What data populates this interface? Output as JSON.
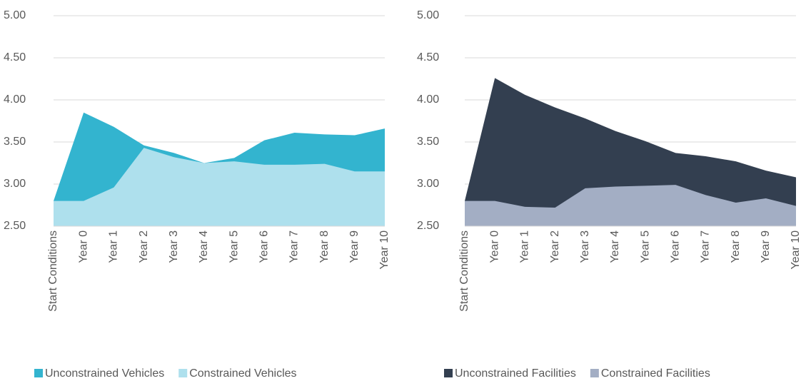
{
  "chart_data": [
    {
      "type": "area",
      "categories": [
        "Start Conditions",
        "Year 0",
        "Year 1",
        "Year 2",
        "Year 3",
        "Year 4",
        "Year 5",
        "Year 6",
        "Year 7",
        "Year 8",
        "Year 9",
        "Year 10"
      ],
      "series": [
        {
          "name": "Unconstrained Vehicles",
          "color": "#33b4cf",
          "values": [
            2.8,
            3.85,
            3.68,
            3.46,
            3.37,
            3.25,
            3.31,
            3.52,
            3.61,
            3.59,
            3.58,
            3.66
          ]
        },
        {
          "name": "Constrained Vehicles",
          "color": "#aee0ed",
          "values": [
            2.8,
            2.8,
            2.96,
            3.43,
            3.32,
            3.25,
            3.27,
            3.23,
            3.23,
            3.24,
            3.15,
            3.15
          ]
        }
      ],
      "ylim": [
        2.5,
        5
      ],
      "yticks": [
        {
          "value": 2.5,
          "label": "2.50"
        },
        {
          "value": 3,
          "label": "3.00"
        },
        {
          "value": 3.5,
          "label": "3.50"
        },
        {
          "value": 4,
          "label": "4.00"
        },
        {
          "value": 4.5,
          "label": "4.50"
        },
        {
          "value": 5,
          "label": "5.00"
        }
      ],
      "grid": true
    },
    {
      "type": "area",
      "categories": [
        "Start Conditions",
        "Year 0",
        "Year 1",
        "Year 2",
        "Year 3",
        "Year 4",
        "Year 5",
        "Year 6",
        "Year 7",
        "Year 8",
        "Year 9",
        "Year 10"
      ],
      "series": [
        {
          "name": "Unconstrained Facilities",
          "color": "#333f50",
          "values": [
            2.8,
            4.26,
            4.06,
            3.91,
            3.78,
            3.63,
            3.51,
            3.37,
            3.33,
            3.27,
            3.16,
            3.08
          ]
        },
        {
          "name": "Constrained Facilities",
          "color": "#a3aec4",
          "values": [
            2.8,
            2.8,
            2.73,
            2.72,
            2.95,
            2.97,
            2.98,
            2.99,
            2.87,
            2.78,
            2.83,
            2.74
          ]
        }
      ],
      "ylim": [
        2.5,
        5
      ],
      "yticks": [
        {
          "value": 2.5,
          "label": "2.50"
        },
        {
          "value": 3,
          "label": "3.00"
        },
        {
          "value": 3.5,
          "label": "3.50"
        },
        {
          "value": 4,
          "label": "4.00"
        },
        {
          "value": 4.5,
          "label": "4.50"
        },
        {
          "value": 5,
          "label": "5.00"
        }
      ],
      "grid": true
    }
  ]
}
